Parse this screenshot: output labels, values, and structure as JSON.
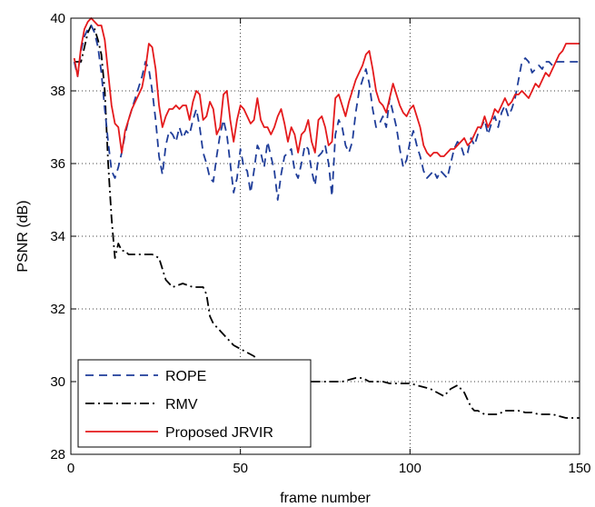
{
  "chart_data": {
    "type": "line",
    "title": "",
    "xlabel": "frame number",
    "ylabel": "PSNR (dB)",
    "xlim": [
      0,
      150
    ],
    "ylim": [
      28,
      40
    ],
    "xticks": [
      "0",
      "50",
      "100",
      "150"
    ],
    "yticks": [
      "28",
      "30",
      "32",
      "34",
      "36",
      "38",
      "40"
    ],
    "grid": true,
    "legend_position": "bottom-left",
    "series": [
      {
        "name": "ROPE",
        "color": "#1f3d99",
        "style": "dashed",
        "x": [
          1,
          2,
          3,
          4,
          5,
          6,
          7,
          8,
          9,
          10,
          11,
          12,
          13,
          14,
          15,
          16,
          17,
          18,
          19,
          20,
          21,
          22,
          23,
          24,
          25,
          26,
          27,
          28,
          29,
          30,
          31,
          32,
          33,
          34,
          35,
          36,
          37,
          38,
          39,
          40,
          41,
          42,
          43,
          44,
          45,
          46,
          47,
          48,
          49,
          50,
          51,
          52,
          53,
          54,
          55,
          56,
          57,
          58,
          59,
          60,
          61,
          62,
          63,
          64,
          65,
          66,
          67,
          68,
          69,
          70,
          71,
          72,
          73,
          74,
          75,
          76,
          77,
          78,
          79,
          80,
          81,
          82,
          83,
          84,
          85,
          86,
          87,
          88,
          89,
          90,
          91,
          92,
          93,
          94,
          95,
          96,
          97,
          98,
          99,
          100,
          101,
          102,
          103,
          104,
          105,
          106,
          107,
          108,
          109,
          110,
          111,
          112,
          113,
          114,
          115,
          116,
          117,
          118,
          119,
          120,
          121,
          122,
          123,
          124,
          125,
          126,
          127,
          128,
          129,
          130,
          131,
          132,
          133,
          134,
          135,
          136,
          137,
          138,
          139,
          140,
          141,
          142,
          143,
          144,
          145,
          146,
          147,
          148,
          149,
          150
        ],
        "y": [
          38.8,
          38.4,
          39.1,
          39.5,
          39.7,
          39.8,
          39.6,
          39.2,
          38.5,
          37.5,
          36.6,
          35.8,
          35.6,
          35.9,
          36.3,
          36.8,
          37.2,
          37.5,
          37.8,
          38.1,
          38.4,
          38.8,
          38.6,
          38.0,
          37.2,
          36.2,
          35.7,
          36.5,
          36.9,
          36.8,
          36.6,
          37.0,
          36.7,
          36.9,
          36.8,
          37.2,
          37.5,
          37.0,
          36.3,
          36.0,
          35.6,
          35.5,
          36.2,
          36.8,
          37.2,
          36.8,
          36.0,
          35.2,
          35.6,
          36.4,
          35.9,
          35.8,
          35.2,
          35.8,
          36.5,
          36.3,
          35.9,
          36.6,
          36.2,
          35.8,
          35.0,
          35.7,
          36.2,
          36.3,
          36.4,
          35.8,
          35.6,
          36.0,
          36.5,
          36.4,
          35.8,
          35.4,
          36.2,
          36.3,
          36.5,
          36.0,
          35.1,
          36.8,
          37.2,
          37.0,
          36.5,
          36.3,
          36.6,
          37.4,
          38.0,
          38.3,
          38.6,
          38.2,
          37.5,
          37.0,
          37.1,
          37.3,
          37.0,
          37.8,
          37.4,
          37.0,
          36.4,
          35.9,
          36.1,
          36.6,
          36.9,
          36.5,
          36.2,
          35.8,
          35.6,
          35.7,
          35.8,
          35.6,
          35.8,
          35.7,
          35.6,
          36.0,
          36.4,
          36.6,
          36.5,
          36.2,
          36.3,
          36.7,
          36.5,
          36.8,
          37.0,
          37.2,
          36.8,
          37.1,
          37.3,
          37.0,
          37.4,
          37.6,
          37.3,
          37.5,
          37.8,
          38.3,
          38.8,
          38.9,
          38.8,
          38.5,
          38.6,
          38.7,
          38.6,
          38.8,
          38.8,
          38.7,
          38.8,
          38.8,
          38.8,
          38.8,
          38.8,
          38.8,
          38.8,
          38.8
        ]
      },
      {
        "name": "RMV",
        "color": "#000000",
        "style": "dashdot",
        "x": [
          1,
          3,
          5,
          6,
          7,
          8,
          9,
          10,
          11,
          12,
          13,
          14,
          15,
          16,
          17,
          18,
          20,
          22,
          24,
          26,
          28,
          30,
          33,
          36,
          39,
          40,
          41,
          42,
          43,
          44,
          46,
          48,
          50,
          52,
          54,
          56,
          58,
          60,
          62,
          64,
          66,
          68,
          70,
          72,
          74,
          76,
          78,
          80,
          82,
          84,
          86,
          88,
          90,
          92,
          94,
          96,
          98,
          100,
          102,
          104,
          106,
          108,
          110,
          112,
          114,
          116,
          117,
          118,
          119,
          120,
          122,
          124,
          126,
          128,
          130,
          132,
          134,
          136,
          138,
          140,
          142,
          144,
          146,
          148,
          150
        ],
        "y": [
          38.8,
          38.8,
          39.6,
          39.8,
          39.7,
          39.4,
          39.0,
          38.0,
          36.0,
          34.5,
          33.4,
          33.8,
          33.6,
          33.6,
          33.5,
          33.5,
          33.5,
          33.5,
          33.5,
          33.4,
          32.8,
          32.6,
          32.7,
          32.6,
          32.6,
          32.4,
          31.8,
          31.6,
          31.5,
          31.4,
          31.2,
          31.0,
          30.9,
          30.8,
          30.7,
          30.5,
          30.4,
          30.3,
          30.2,
          30.1,
          30.0,
          30.0,
          30.0,
          30.0,
          30.0,
          30.0,
          30.0,
          30.0,
          30.05,
          30.1,
          30.1,
          30.0,
          30.0,
          30.0,
          29.95,
          29.95,
          29.95,
          29.95,
          29.9,
          29.85,
          29.8,
          29.7,
          29.6,
          29.8,
          29.9,
          29.7,
          29.5,
          29.3,
          29.2,
          29.2,
          29.1,
          29.1,
          29.1,
          29.2,
          29.2,
          29.2,
          29.15,
          29.15,
          29.1,
          29.1,
          29.1,
          29.05,
          29.0,
          29.0,
          29.0
        ]
      },
      {
        "name": "Proposed JRVIR",
        "color": "#e41a1c",
        "style": "solid",
        "x": [
          1,
          2,
          3,
          4,
          5,
          6,
          7,
          8,
          9,
          10,
          11,
          12,
          13,
          14,
          15,
          16,
          17,
          18,
          19,
          20,
          21,
          22,
          23,
          24,
          25,
          26,
          27,
          28,
          29,
          30,
          31,
          32,
          33,
          34,
          35,
          36,
          37,
          38,
          39,
          40,
          41,
          42,
          43,
          44,
          45,
          46,
          47,
          48,
          49,
          50,
          51,
          52,
          53,
          54,
          55,
          56,
          57,
          58,
          59,
          60,
          61,
          62,
          63,
          64,
          65,
          66,
          67,
          68,
          69,
          70,
          71,
          72,
          73,
          74,
          75,
          76,
          77,
          78,
          79,
          80,
          81,
          82,
          83,
          84,
          85,
          86,
          87,
          88,
          89,
          90,
          91,
          92,
          93,
          94,
          95,
          96,
          97,
          98,
          99,
          100,
          101,
          102,
          103,
          104,
          105,
          106,
          107,
          108,
          109,
          110,
          111,
          112,
          113,
          114,
          115,
          116,
          117,
          118,
          119,
          120,
          121,
          122,
          123,
          124,
          125,
          126,
          127,
          128,
          129,
          130,
          131,
          132,
          133,
          134,
          135,
          136,
          137,
          138,
          139,
          140,
          141,
          142,
          143,
          144,
          145,
          146,
          147,
          148,
          149,
          150
        ],
        "y": [
          38.9,
          38.4,
          39.2,
          39.7,
          39.9,
          40.0,
          39.9,
          39.8,
          39.8,
          39.4,
          38.5,
          37.6,
          37.1,
          37.0,
          36.3,
          36.9,
          37.2,
          37.5,
          37.7,
          37.9,
          38.1,
          38.6,
          39.3,
          39.2,
          38.6,
          37.6,
          37.0,
          37.3,
          37.5,
          37.5,
          37.6,
          37.5,
          37.6,
          37.6,
          37.2,
          37.7,
          38.0,
          37.9,
          37.2,
          37.3,
          37.7,
          37.5,
          36.8,
          37.0,
          37.9,
          38.0,
          37.2,
          36.6,
          37.2,
          37.6,
          37.5,
          37.3,
          37.1,
          37.2,
          37.8,
          37.2,
          37.0,
          37.0,
          36.8,
          37.0,
          37.3,
          37.5,
          37.1,
          36.6,
          37.0,
          36.8,
          36.3,
          36.8,
          36.9,
          37.2,
          36.6,
          36.3,
          37.2,
          37.3,
          37.0,
          36.5,
          36.6,
          37.8,
          37.9,
          37.6,
          37.3,
          37.7,
          38.0,
          38.3,
          38.5,
          38.7,
          39.0,
          39.1,
          38.6,
          38.0,
          37.7,
          37.6,
          37.4,
          37.8,
          38.2,
          37.9,
          37.6,
          37.4,
          37.3,
          37.5,
          37.6,
          37.3,
          37.0,
          36.5,
          36.3,
          36.2,
          36.3,
          36.3,
          36.2,
          36.2,
          36.3,
          36.4,
          36.4,
          36.5,
          36.6,
          36.7,
          36.5,
          36.6,
          36.8,
          37.0,
          37.0,
          37.3,
          37.0,
          37.2,
          37.5,
          37.4,
          37.6,
          37.8,
          37.6,
          37.7,
          37.9,
          37.9,
          38.0,
          37.9,
          37.8,
          38.0,
          38.2,
          38.1,
          38.3,
          38.5,
          38.4,
          38.6,
          38.8,
          39.0,
          39.1,
          39.3,
          39.3,
          39.3,
          39.3,
          39.3
        ]
      }
    ]
  }
}
